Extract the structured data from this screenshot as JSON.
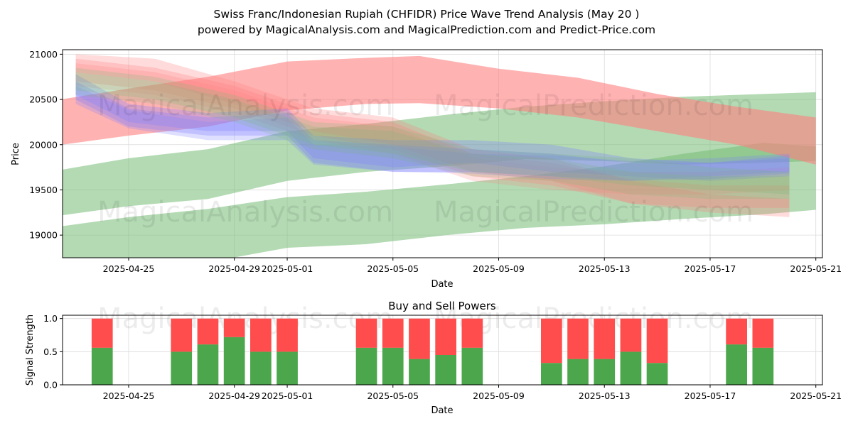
{
  "figure": {
    "title_line1": "Swiss Franc/Indonesian Rupiah (CHFIDR) Price Wave Trend Analysis (May 20 )",
    "title_line2": "powered by MagicalAnalysis.com and MagicalPrediction.com and Predict-Price.com",
    "watermarks": [
      "MagicalAnalysis.com",
      "MagicalPrediction.com"
    ]
  },
  "chart_data": [
    {
      "type": "area",
      "xlabel": "Date",
      "ylabel": "Price",
      "x_ticks": [
        "2025-04-25",
        "2025-04-29",
        "2025-05-01",
        "2025-05-05",
        "2025-05-09",
        "2025-05-13",
        "2025-05-17",
        "2025-05-21"
      ],
      "y_ticks": [
        19000,
        19500,
        20000,
        20500,
        21000
      ],
      "xlim": [
        "2025-04-22T12:00",
        "2025-05-21T06:00"
      ],
      "ylim": [
        18750,
        21050
      ],
      "grid": true,
      "colors": {
        "red": "#ff7f7f",
        "green": "#74bb74",
        "blue": "#7f7fff"
      },
      "bands": [
        {
          "color": "green",
          "alpha": 0.55,
          "x": [
            "2025-04-22",
            "2025-04-25",
            "2025-04-28",
            "2025-05-01",
            "2025-05-04",
            "2025-05-07",
            "2025-05-10",
            "2025-05-13",
            "2025-05-16",
            "2025-05-19",
            "2025-05-21"
          ],
          "upper": [
            19080,
            19200,
            19290,
            19420,
            19480,
            19560,
            19650,
            19760,
            19900,
            20020,
            19980
          ],
          "lower": [
            18600,
            18640,
            18700,
            18860,
            18900,
            19000,
            19080,
            19120,
            19180,
            19230,
            19280
          ]
        },
        {
          "color": "green",
          "alpha": 0.55,
          "x": [
            "2025-04-22",
            "2025-04-25",
            "2025-04-28",
            "2025-05-01",
            "2025-05-04",
            "2025-05-07",
            "2025-05-10",
            "2025-05-13",
            "2025-05-16",
            "2025-05-19",
            "2025-05-21"
          ],
          "upper": [
            19700,
            19850,
            19950,
            20150,
            20230,
            20330,
            20420,
            20480,
            20530,
            20560,
            20580
          ],
          "lower": [
            19200,
            19320,
            19400,
            19600,
            19700,
            19760,
            19840,
            19820,
            19780,
            19800,
            19820
          ]
        },
        {
          "color": "red",
          "alpha": 0.6,
          "x": [
            "2025-04-22",
            "2025-04-25",
            "2025-04-28",
            "2025-05-01",
            "2025-05-04",
            "2025-05-06",
            "2025-05-09",
            "2025-05-12",
            "2025-05-15",
            "2025-05-18",
            "2025-05-21"
          ],
          "upper": [
            20480,
            20620,
            20750,
            20920,
            20960,
            20980,
            20840,
            20740,
            20560,
            20420,
            20300
          ],
          "lower": [
            19980,
            20100,
            20200,
            20380,
            20450,
            20460,
            20400,
            20300,
            20150,
            20000,
            19780
          ]
        },
        {
          "color": "red",
          "alpha": 0.28,
          "x": [
            "2025-04-23",
            "2025-04-26",
            "2025-04-29",
            "2025-05-02",
            "2025-05-05",
            "2025-05-08",
            "2025-05-11",
            "2025-05-14",
            "2025-05-17",
            "2025-05-20"
          ],
          "upper": [
            21000,
            20950,
            20700,
            20400,
            20300,
            19950,
            19850,
            19600,
            19450,
            19400
          ],
          "lower": [
            20800,
            20700,
            20450,
            20150,
            20000,
            19700,
            19600,
            19350,
            19250,
            19200
          ]
        },
        {
          "color": "red",
          "alpha": 0.28,
          "x": [
            "2025-04-23",
            "2025-04-26",
            "2025-04-29",
            "2025-05-02",
            "2025-05-05",
            "2025-05-08",
            "2025-05-11",
            "2025-05-14",
            "2025-05-17",
            "2025-05-20"
          ],
          "upper": [
            20950,
            20850,
            20650,
            20350,
            20250,
            19900,
            19800,
            19620,
            19550,
            19550
          ],
          "lower": [
            20700,
            20600,
            20400,
            20100,
            19950,
            19650,
            19550,
            19350,
            19300,
            19300
          ]
        },
        {
          "color": "red",
          "alpha": 0.22,
          "x": [
            "2025-04-23",
            "2025-04-26",
            "2025-04-29",
            "2025-05-02",
            "2025-05-05",
            "2025-05-08",
            "2025-05-11",
            "2025-05-14",
            "2025-05-17",
            "2025-05-20"
          ],
          "upper": [
            20900,
            20800,
            20600,
            20300,
            20200,
            19850,
            19750,
            19700,
            19700,
            19750
          ],
          "lower": [
            20650,
            20550,
            20350,
            20050,
            19900,
            19600,
            19500,
            19450,
            19450,
            19500
          ]
        },
        {
          "color": "blue",
          "alpha": 0.3,
          "x": [
            "2025-04-23",
            "2025-04-25",
            "2025-04-28",
            "2025-05-01",
            "2025-05-02",
            "2025-05-05",
            "2025-05-08",
            "2025-05-11",
            "2025-05-14",
            "2025-05-17",
            "2025-05-20"
          ],
          "upper": [
            20780,
            20450,
            20350,
            20400,
            20100,
            20050,
            20050,
            20000,
            19850,
            19800,
            19850
          ],
          "lower": [
            20550,
            20250,
            20150,
            20150,
            19850,
            19750,
            19800,
            19700,
            19650,
            19600,
            19650
          ]
        },
        {
          "color": "blue",
          "alpha": 0.3,
          "x": [
            "2025-04-23",
            "2025-04-25",
            "2025-04-28",
            "2025-05-01",
            "2025-05-02",
            "2025-05-05",
            "2025-05-08",
            "2025-05-11",
            "2025-05-14",
            "2025-05-17",
            "2025-05-20"
          ],
          "upper": [
            20700,
            20400,
            20300,
            20350,
            20050,
            20000,
            19950,
            19900,
            19800,
            19800,
            19880
          ],
          "lower": [
            20500,
            20200,
            20100,
            20100,
            19800,
            19700,
            19700,
            19650,
            19600,
            19620,
            19680
          ]
        },
        {
          "color": "blue",
          "alpha": 0.26,
          "x": [
            "2025-04-23",
            "2025-04-25",
            "2025-04-28",
            "2025-05-01",
            "2025-05-02",
            "2025-05-05",
            "2025-05-08",
            "2025-05-11",
            "2025-05-14",
            "2025-05-17",
            "2025-05-20"
          ],
          "upper": [
            20650,
            20380,
            20250,
            20300,
            20000,
            19980,
            19900,
            19880,
            19820,
            19850,
            19900
          ],
          "lower": [
            20450,
            20180,
            20050,
            20050,
            19780,
            19700,
            19680,
            19620,
            19600,
            19650,
            19700
          ]
        },
        {
          "color": "green",
          "alpha": 0.22,
          "x": [
            "2025-04-23",
            "2025-04-26",
            "2025-04-29",
            "2025-05-02",
            "2025-05-05",
            "2025-05-08",
            "2025-05-11",
            "2025-05-14",
            "2025-05-17",
            "2025-05-20"
          ],
          "upper": [
            20850,
            20750,
            20550,
            20250,
            20200,
            19950,
            19900,
            19850,
            19750,
            19700
          ],
          "lower": [
            20600,
            20500,
            20300,
            20000,
            19900,
            19700,
            19650,
            19550,
            19500,
            19450
          ]
        },
        {
          "color": "green",
          "alpha": 0.2,
          "x": [
            "2025-04-23",
            "2025-04-26",
            "2025-04-29",
            "2025-05-02",
            "2025-05-05",
            "2025-05-08",
            "2025-05-11",
            "2025-05-14",
            "2025-05-17",
            "2025-05-20"
          ],
          "upper": [
            20800,
            20700,
            20500,
            20200,
            20150,
            19900,
            19850,
            19700,
            19650,
            19650
          ],
          "lower": [
            20550,
            20450,
            20250,
            19950,
            19850,
            19650,
            19600,
            19450,
            19400,
            19400
          ]
        }
      ]
    },
    {
      "type": "bar",
      "title": "Buy and Sell Powers",
      "xlabel": "Date",
      "ylabel": "Signal Strength",
      "x_ticks": [
        "2025-04-25",
        "2025-04-29",
        "2025-05-01",
        "2025-05-05",
        "2025-05-09",
        "2025-05-13",
        "2025-05-17",
        "2025-05-21"
      ],
      "y_ticks": [
        0.0,
        0.5,
        1.0
      ],
      "ylim": [
        0,
        1.05
      ],
      "xlim": [
        "2025-04-22T12:00",
        "2025-05-21T06:00"
      ],
      "grid": true,
      "colors": {
        "buy": "#4ca64c",
        "sell": "#ff4c4c"
      },
      "dates": [
        "2025-04-24",
        "2025-04-27",
        "2025-04-28",
        "2025-04-29",
        "2025-04-30",
        "2025-05-01",
        "2025-05-04",
        "2025-05-05",
        "2025-05-06",
        "2025-05-07",
        "2025-05-08",
        "2025-05-11",
        "2025-05-12",
        "2025-05-13",
        "2025-05-14",
        "2025-05-15",
        "2025-05-18",
        "2025-05-19"
      ],
      "buy": [
        0.56,
        0.5,
        0.61,
        0.72,
        0.5,
        0.5,
        0.56,
        0.56,
        0.39,
        0.45,
        0.56,
        0.33,
        0.39,
        0.39,
        0.5,
        0.33,
        0.61,
        0.56
      ],
      "sell": [
        0.44,
        0.5,
        0.39,
        0.28,
        0.5,
        0.5,
        0.44,
        0.44,
        0.61,
        0.55,
        0.44,
        0.67,
        0.61,
        0.61,
        0.5,
        0.67,
        0.39,
        0.44
      ]
    }
  ]
}
